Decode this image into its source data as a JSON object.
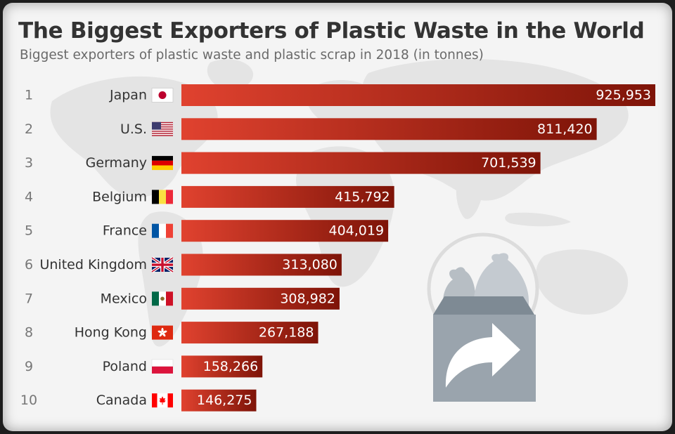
{
  "header": {
    "title": "The Biggest Exporters of Plastic Waste in the World",
    "subtitle": "Biggest exporters of plastic waste and plastic scrap in 2018 (in tonnes)"
  },
  "colors": {
    "bar_start": "#e0422f",
    "bar_end": "#7e1408",
    "value_text": "#ffffff",
    "label_text": "#333333",
    "rank_text": "#777777",
    "icon": "#9aa4ad"
  },
  "decoration": {
    "background": "world-map",
    "icon": "plastic-waste-bag-export-icon"
  },
  "chart_data": {
    "type": "bar",
    "orientation": "horizontal",
    "title": "The Biggest Exporters of Plastic Waste in the World",
    "subtitle": "Biggest exporters of plastic waste and plastic scrap in 2018 (in tonnes)",
    "xlabel": "",
    "ylabel": "",
    "xlim": [
      0,
      925953
    ],
    "grid": false,
    "ranks": [
      "1",
      "2",
      "3",
      "4",
      "5",
      "6",
      "7",
      "8",
      "9",
      "10"
    ],
    "categories": [
      "Japan",
      "U.S.",
      "Germany",
      "Belgium",
      "France",
      "United Kingdom",
      "Mexico",
      "Hong Kong",
      "Poland",
      "Canada"
    ],
    "flags": [
      "japan-flag-icon",
      "usa-flag-icon",
      "germany-flag-icon",
      "belgium-flag-icon",
      "france-flag-icon",
      "uk-flag-icon",
      "mexico-flag-icon",
      "hong-kong-flag-icon",
      "poland-flag-icon",
      "canada-flag-icon"
    ],
    "values": [
      925953,
      811420,
      701539,
      415792,
      404019,
      313080,
      308982,
      267188,
      158266,
      146275
    ],
    "value_labels": [
      "925,953",
      "811,420",
      "701,539",
      "415,792",
      "404,019",
      "313,080",
      "308,982",
      "267,188",
      "158,266",
      "146,275"
    ]
  }
}
